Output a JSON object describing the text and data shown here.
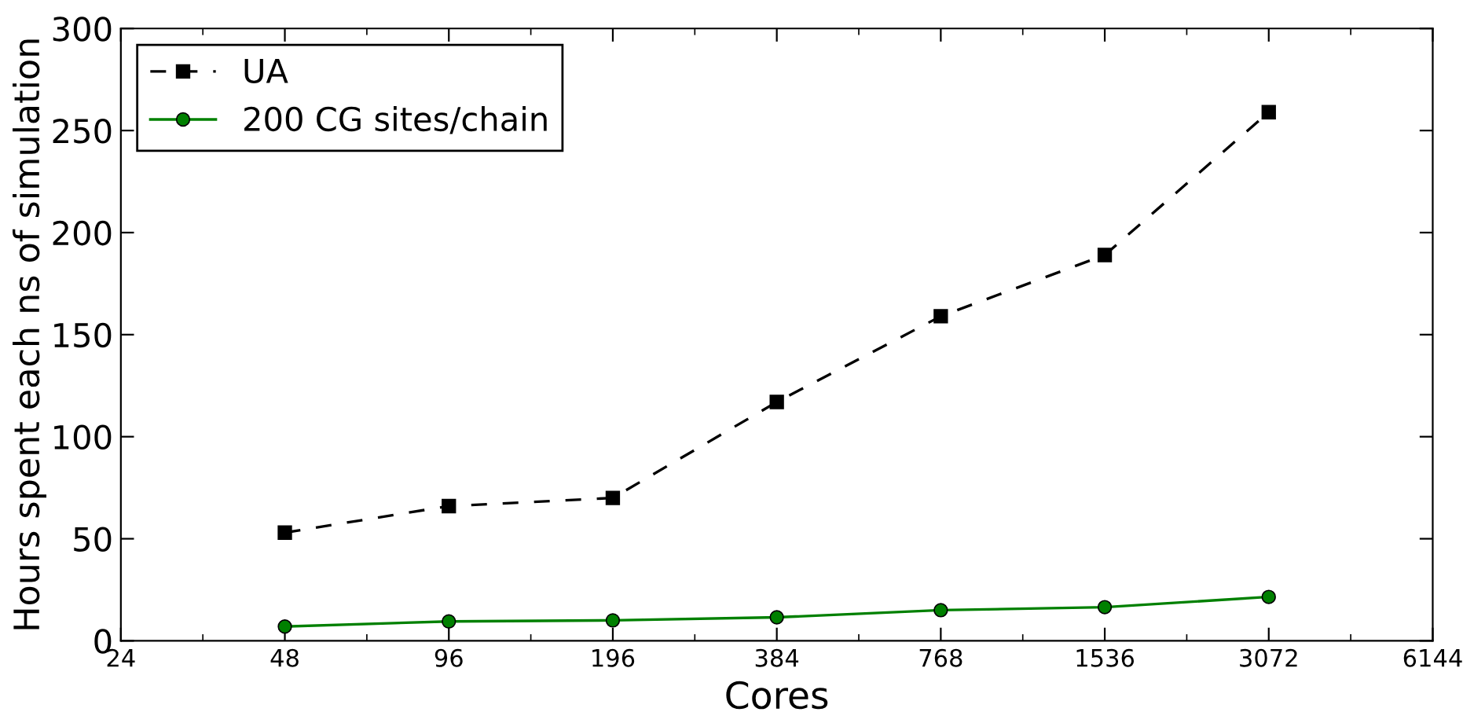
{
  "chart_data": {
    "type": "line",
    "xlabel": "Cores",
    "ylabel": "Hours spent each ns of simulation",
    "categories": [
      "24",
      "48",
      "96",
      "196",
      "384",
      "768",
      "1536",
      "3072",
      "6144"
    ],
    "series": [
      {
        "name": "UA",
        "color": "#000000",
        "marker": "square",
        "line_style": "dashed",
        "values": [
          null,
          53,
          66,
          70,
          117,
          159,
          189,
          259,
          null
        ]
      },
      {
        "name": "200 CG sites/chain",
        "color": "#008000",
        "marker": "circle",
        "line_style": "solid",
        "values": [
          null,
          7,
          9.5,
          10,
          11.5,
          15,
          16.5,
          21.5,
          null
        ]
      }
    ],
    "ylim": [
      0,
      300
    ],
    "yticks": [
      0,
      50,
      100,
      150,
      200,
      250,
      300
    ],
    "grid": false,
    "legend": "top left"
  }
}
